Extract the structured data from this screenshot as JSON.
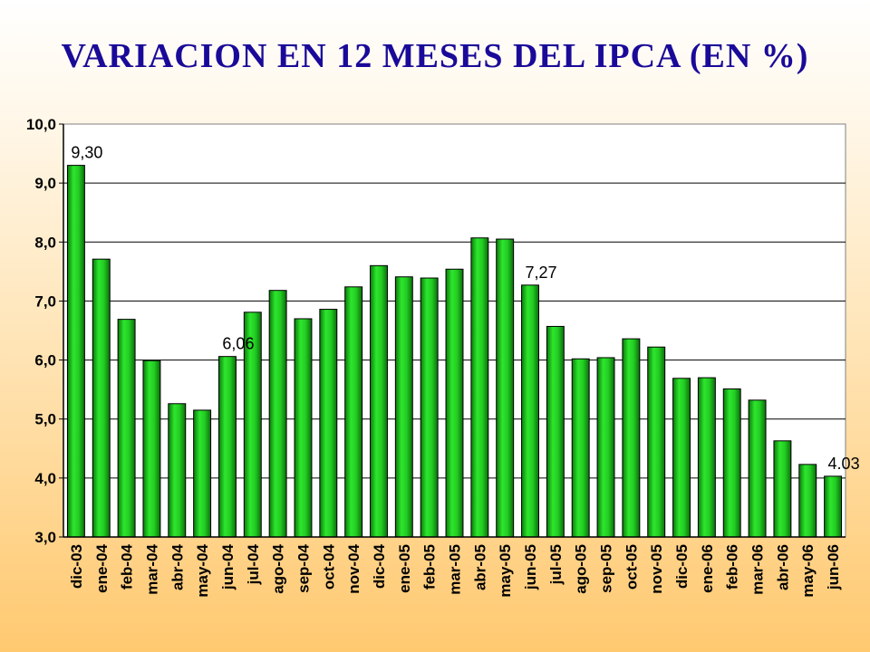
{
  "chart_data": {
    "type": "bar",
    "title": "VARIACION EN 12 MESES DEL IPCA (EN %)",
    "xlabel": "",
    "ylabel": "",
    "ylim": [
      3.0,
      10.0
    ],
    "yticks": [
      "3,0",
      "4,0",
      "5,0",
      "6,0",
      "7,0",
      "8,0",
      "9,0",
      "10,0"
    ],
    "grid": true,
    "categories": [
      "dic-03",
      "ene-04",
      "feb-04",
      "mar-04",
      "abr-04",
      "may-04",
      "jun-04",
      "jul-04",
      "ago-04",
      "sep-04",
      "oct-04",
      "nov-04",
      "dic-04",
      "ene-05",
      "feb-05",
      "mar-05",
      "abr-05",
      "may-05",
      "jun-05",
      "jul-05",
      "ago-05",
      "sep-05",
      "oct-05",
      "nov-05",
      "dic-05",
      "ene-06",
      "feb-06",
      "mar-06",
      "abr-06",
      "may-06",
      "jun-06"
    ],
    "values": [
      9.3,
      7.71,
      6.69,
      5.99,
      5.26,
      5.15,
      6.06,
      6.81,
      7.18,
      6.7,
      6.86,
      7.24,
      7.6,
      7.41,
      7.39,
      7.54,
      8.07,
      8.05,
      7.27,
      6.57,
      6.02,
      6.04,
      6.36,
      6.22,
      5.69,
      5.7,
      5.51,
      5.32,
      4.63,
      4.23,
      4.03
    ],
    "data_labels": [
      {
        "index": 0,
        "text": "9,30"
      },
      {
        "index": 6,
        "text": "6,06"
      },
      {
        "index": 18,
        "text": "7,27"
      },
      {
        "index": 30,
        "text": "4.03"
      }
    ],
    "bar_color": "#22cc22"
  }
}
